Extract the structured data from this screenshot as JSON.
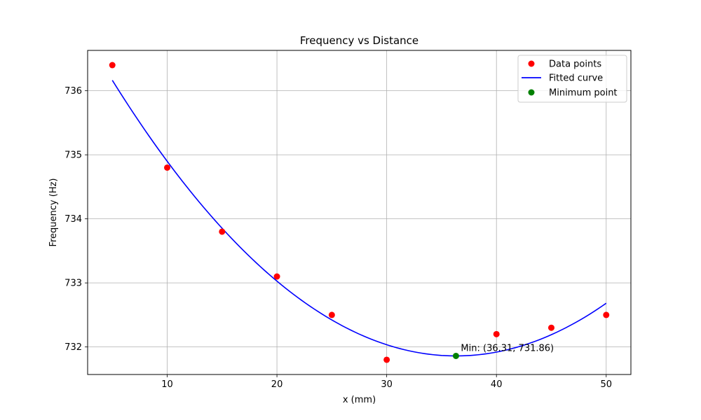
{
  "chart_data": {
    "type": "scatter",
    "title": "Frequency vs Distance",
    "xlabel": "x (mm)",
    "ylabel": "Frequency (Hz)",
    "xlim": [
      2.75,
      52.25
    ],
    "ylim": [
      731.57,
      736.63
    ],
    "xticks": [
      10,
      20,
      30,
      40,
      50
    ],
    "yticks": [
      732,
      733,
      734,
      735,
      736
    ],
    "grid": true,
    "legend_position": "top-right",
    "series": [
      {
        "name": "Data points",
        "kind": "scatter",
        "color": "#ff0000",
        "x": [
          5,
          10,
          15,
          20,
          25,
          30,
          40,
          45,
          50
        ],
        "y": [
          736.4,
          734.8,
          733.8,
          733.1,
          732.5,
          731.8,
          732.2,
          732.3,
          732.5
        ]
      },
      {
        "name": "Fitted curve",
        "kind": "line",
        "color": "#0000ff",
        "curve": {
          "a": 0.00439,
          "vertex_x": 36.31,
          "vertex_y": 731.86,
          "x_start": 5,
          "x_end": 50
        }
      },
      {
        "name": "Minimum point",
        "kind": "scatter",
        "color": "#008000",
        "x": [
          36.31
        ],
        "y": [
          731.86
        ]
      }
    ],
    "annotations": [
      {
        "text": "Min: (36.31, 731.86)",
        "x": 36.31,
        "y": 731.86
      }
    ]
  }
}
